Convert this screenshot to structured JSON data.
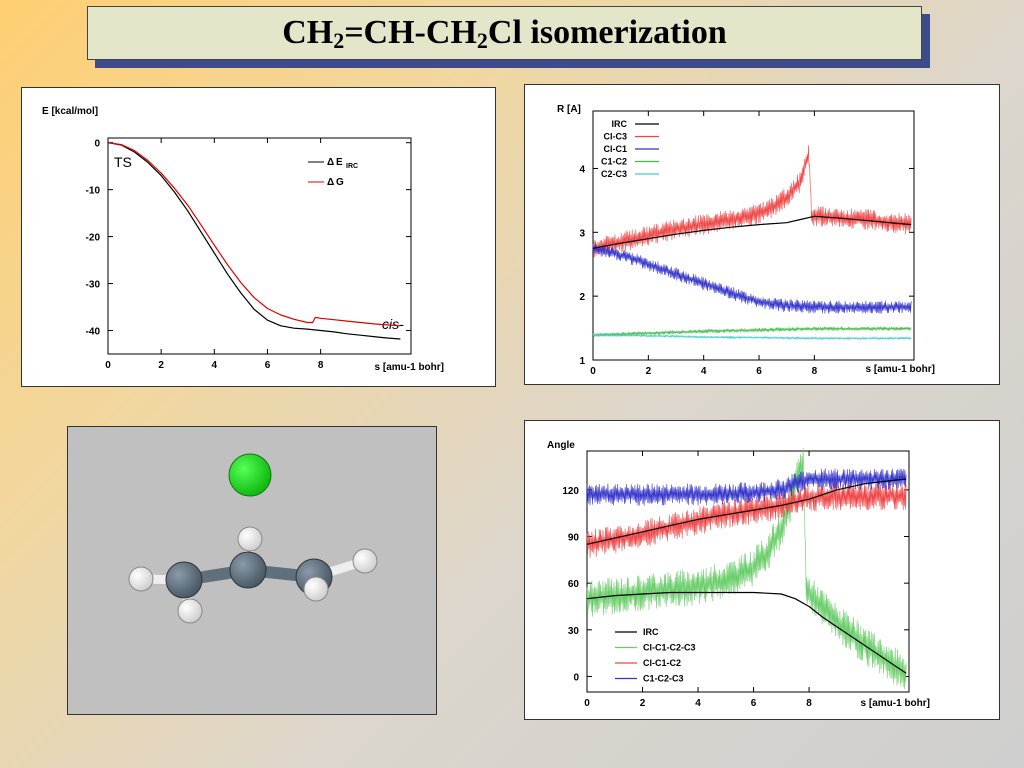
{
  "slide": {
    "title_part1": "CH",
    "title_sub1": "2",
    "title_part2": "=CH-CH",
    "title_sub2": "2",
    "title_part3": "Cl isomerization"
  },
  "chart_data": [
    {
      "id": "energy",
      "type": "line",
      "ylabel": "E [kcal/mol]",
      "xlabel": "s [amu-1 bohr]",
      "xlim": [
        0,
        11.4
      ],
      "ylim": [
        -45,
        1
      ],
      "xticks": [
        "0",
        "2",
        "4",
        "6",
        "8"
      ],
      "xtick_values": [
        0,
        2,
        4,
        6,
        8
      ],
      "yticks": [
        "0",
        "-10",
        "-20",
        "-30",
        "-40"
      ],
      "ytick_values": [
        0,
        -10,
        -20,
        -30,
        -40
      ],
      "annotations": {
        "ts": "TS",
        "cis": "cis-"
      },
      "legend": {
        "placement": "top-right",
        "entries": [
          {
            "symbol": "Δ",
            "label": "E",
            "sub": "IRC",
            "color": "#000000"
          },
          {
            "symbol": "Δ",
            "label": "G",
            "sub": "",
            "color": "#dd0000"
          }
        ]
      },
      "series": [
        {
          "key": "dE",
          "color": "#000000",
          "x": [
            0,
            0.5,
            1,
            1.5,
            2,
            2.5,
            3,
            3.5,
            4,
            4.5,
            5,
            5.5,
            6,
            6.5,
            7,
            7.5,
            8,
            8.5,
            9,
            9.5,
            10,
            10.5,
            11
          ],
          "y": [
            0,
            -0.5,
            -2,
            -4.2,
            -7,
            -10.5,
            -14.5,
            -19,
            -23.5,
            -28,
            -32,
            -35.5,
            -37.8,
            -39,
            -39.5,
            -39.7,
            -40,
            -40.3,
            -40.7,
            -41,
            -41.3,
            -41.6,
            -41.8
          ]
        },
        {
          "key": "dG",
          "color": "#dd0000",
          "x": [
            0,
            0.5,
            1,
            1.5,
            2,
            2.5,
            3,
            3.5,
            4,
            4.5,
            5,
            5.5,
            6,
            6.5,
            7,
            7.5,
            7.7,
            7.8,
            8,
            8.5,
            9,
            9.5,
            10,
            10.5,
            11
          ],
          "y": [
            0,
            -0.4,
            -1.7,
            -3.8,
            -6.5,
            -9.7,
            -13.3,
            -17.5,
            -21.8,
            -26,
            -29.8,
            -33,
            -35.3,
            -36.7,
            -37.6,
            -38.3,
            -38.3,
            -37.2,
            -37.4,
            -37.7,
            -38,
            -38.3,
            -38.6,
            -38.8,
            -39
          ]
        }
      ]
    },
    {
      "id": "distances",
      "type": "line",
      "ylabel": "R [A]",
      "xlabel": "s [amu-1 bohr]",
      "xlim": [
        0,
        11.6
      ],
      "ylim": [
        1,
        4.9
      ],
      "xticks": [
        "0",
        "2",
        "4",
        "6",
        "8"
      ],
      "xtick_values": [
        0,
        2,
        4,
        6,
        8
      ],
      "yticks": [
        "1",
        "2",
        "3",
        "4"
      ],
      "ytick_values": [
        1,
        2,
        3,
        4
      ],
      "legend": {
        "placement": "top-left",
        "entries": [
          {
            "label": "IRC",
            "color": "#000000"
          },
          {
            "label": "Cl-C3",
            "color": "#ee4444"
          },
          {
            "label": "Cl-C1",
            "color": "#3333cc"
          },
          {
            "label": "C1-C2",
            "color": "#44bb44"
          },
          {
            "label": "C2-C3",
            "color": "#44cccc"
          }
        ]
      },
      "series": [
        {
          "key": "cl_c3",
          "color": "#ee4444",
          "noise": 0.16,
          "x_end": 11.5,
          "x": [
            0,
            0.5,
            1,
            2,
            3,
            4,
            5,
            6,
            6.5,
            7,
            7.5,
            7.8,
            7.9,
            8.5,
            9,
            10,
            11,
            11.5
          ],
          "y": [
            2.75,
            2.8,
            2.85,
            2.95,
            3.05,
            3.12,
            3.2,
            3.3,
            3.4,
            3.55,
            3.8,
            4.25,
            3.25,
            3.25,
            3.22,
            3.2,
            3.15,
            3.12
          ]
        },
        {
          "key": "cl_c1",
          "color": "#3333cc",
          "noise": 0.1,
          "x_end": 11.5,
          "x": [
            0,
            1,
            2,
            3,
            4,
            5,
            5.5,
            6,
            6.5,
            7,
            8,
            9,
            10,
            11,
            11.5
          ],
          "y": [
            2.75,
            2.65,
            2.5,
            2.35,
            2.2,
            2.05,
            1.98,
            1.92,
            1.88,
            1.85,
            1.83,
            1.83,
            1.83,
            1.83,
            1.83
          ]
        },
        {
          "key": "irc_r",
          "color": "#000000",
          "noise": 0,
          "x_end": 11.5,
          "x": [
            0,
            1,
            2,
            3,
            4,
            5,
            6,
            7,
            7.5,
            8,
            9,
            10,
            11,
            11.5
          ],
          "y": [
            2.75,
            2.83,
            2.9,
            2.97,
            3.03,
            3.08,
            3.12,
            3.15,
            3.2,
            3.25,
            3.22,
            3.18,
            3.14,
            3.12
          ]
        },
        {
          "key": "c1_c2",
          "color": "#44bb44",
          "noise": 0.03,
          "x_end": 11.5,
          "x": [
            0,
            2,
            4,
            6,
            8,
            10,
            11.5
          ],
          "y": [
            1.39,
            1.42,
            1.45,
            1.47,
            1.49,
            1.49,
            1.49
          ]
        },
        {
          "key": "c2_c3",
          "color": "#44cccc",
          "noise": 0.02,
          "x_end": 11.5,
          "x": [
            0,
            2,
            4,
            6,
            8,
            10,
            11.5
          ],
          "y": [
            1.39,
            1.38,
            1.36,
            1.35,
            1.34,
            1.34,
            1.34
          ]
        }
      ]
    },
    {
      "id": "angles",
      "type": "line",
      "ylabel": "Angle",
      "xlabel": "s [amu-1 bohr]",
      "xlim": [
        0,
        11.6
      ],
      "ylim": [
        -10,
        145
      ],
      "xticks": [
        "0",
        "2",
        "4",
        "6",
        "8"
      ],
      "xtick_values": [
        0,
        2,
        4,
        6,
        8
      ],
      "yticks": [
        "0",
        "30",
        "60",
        "90",
        "120"
      ],
      "ytick_values": [
        0,
        30,
        60,
        90,
        120
      ],
      "legend": {
        "placement": "bottom-left",
        "entries": [
          {
            "label": "IRC",
            "color": "#000000"
          },
          {
            "label": "Cl-C1-C2-C3",
            "color": "#66cc66"
          },
          {
            "label": "Cl-C1-C2",
            "color": "#ee4444"
          },
          {
            "label": "C1-C2-C3",
            "color": "#3333cc"
          }
        ]
      },
      "series": [
        {
          "key": "dihedral",
          "color": "#66cc66",
          "noise": 12,
          "x_end": 11.5,
          "x": [
            0,
            1,
            2,
            3,
            4,
            5,
            6,
            6.5,
            7,
            7.3,
            7.6,
            7.8,
            7.9,
            8.2,
            9,
            10,
            11,
            11.5
          ],
          "y": [
            50,
            52,
            54,
            56,
            58,
            62,
            70,
            80,
            95,
            110,
            130,
            140,
            55,
            50,
            35,
            20,
            8,
            2
          ]
        },
        {
          "key": "cl_c1_c2",
          "color": "#ee4444",
          "noise": 9,
          "x_end": 11.5,
          "x": [
            0,
            1,
            2,
            3,
            4,
            5,
            6,
            7,
            7.5,
            8,
            9,
            10,
            11,
            11.5
          ],
          "y": [
            85,
            88,
            92,
            96,
            100,
            104,
            107,
            110,
            113,
            115,
            116,
            116,
            116,
            116
          ]
        },
        {
          "key": "c1_c2_c3",
          "color": "#3333cc",
          "noise": 7,
          "x_end": 11.5,
          "x": [
            0,
            2,
            4,
            6,
            7,
            7.5,
            8,
            9,
            10,
            11,
            11.5
          ],
          "y": [
            117,
            117,
            117,
            118,
            120,
            124,
            127,
            127,
            127,
            127,
            127
          ]
        },
        {
          "key": "irc_a",
          "color": "#000000",
          "noise": 0,
          "x_end": 11.5,
          "x": [
            0,
            1,
            2,
            3,
            4,
            5,
            6,
            7,
            7.5,
            8,
            8.5,
            9,
            10,
            11,
            11.5
          ],
          "y": [
            50,
            52,
            53,
            54,
            54,
            54,
            54,
            53,
            50,
            45,
            38,
            32,
            20,
            8,
            2
          ]
        },
        {
          "key": "irc_a2",
          "color": "#000000",
          "noise": 0,
          "x_end": 11.5,
          "x": [
            0,
            1,
            2,
            3,
            4,
            5,
            6,
            7,
            8,
            9,
            10,
            11,
            11.5
          ],
          "y": [
            85,
            89,
            93,
            97,
            101,
            104,
            107,
            110,
            114,
            120,
            124,
            126,
            127
          ]
        }
      ]
    }
  ],
  "molecule": {
    "atoms": [
      {
        "name": "chlorine-atom",
        "color": "#22dd22"
      },
      {
        "name": "carbon-atom-c1",
        "color": "#607080"
      },
      {
        "name": "carbon-atom-c2",
        "color": "#607080"
      },
      {
        "name": "carbon-atom-c3",
        "color": "#607080"
      },
      {
        "name": "hydrogen-atom",
        "color": "#ffffff"
      }
    ]
  }
}
